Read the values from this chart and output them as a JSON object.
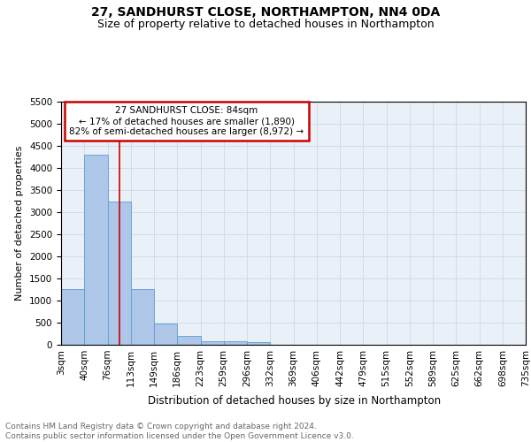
{
  "title1": "27, SANDHURST CLOSE, NORTHAMPTON, NN4 0DA",
  "title2": "Size of property relative to detached houses in Northampton",
  "xlabel": "Distribution of detached houses by size in Northampton",
  "ylabel": "Number of detached properties",
  "bar_values": [
    1260,
    4300,
    3250,
    1270,
    480,
    195,
    90,
    75,
    55,
    0,
    0,
    0,
    0,
    0,
    0,
    0,
    0,
    0,
    0,
    0
  ],
  "bin_labels": [
    "3sqm",
    "40sqm",
    "76sqm",
    "113sqm",
    "149sqm",
    "186sqm",
    "223sqm",
    "259sqm",
    "296sqm",
    "332sqm",
    "369sqm",
    "406sqm",
    "442sqm",
    "479sqm",
    "515sqm",
    "552sqm",
    "589sqm",
    "625sqm",
    "662sqm",
    "698sqm",
    "735sqm"
  ],
  "bar_color": "#aec6e8",
  "bar_edge_color": "#5a9fd4",
  "grid_color": "#d0dce8",
  "background_color": "#eaf0f8",
  "vline_x_index": 2,
  "vline_color": "#cc0000",
  "annotation_text": "27 SANDHURST CLOSE: 84sqm\n← 17% of detached houses are smaller (1,890)\n82% of semi-detached houses are larger (8,972) →",
  "annotation_box_color": "#ffffff",
  "annotation_box_edge": "#cc0000",
  "ylim": [
    0,
    5500
  ],
  "yticks": [
    0,
    500,
    1000,
    1500,
    2000,
    2500,
    3000,
    3500,
    4000,
    4500,
    5000,
    5500
  ],
  "footnote": "Contains HM Land Registry data © Crown copyright and database right 2024.\nContains public sector information licensed under the Open Government Licence v3.0.",
  "title1_fontsize": 10,
  "title2_fontsize": 9,
  "xlabel_fontsize": 8.5,
  "ylabel_fontsize": 8,
  "tick_fontsize": 7.5,
  "footnote_fontsize": 6.5
}
